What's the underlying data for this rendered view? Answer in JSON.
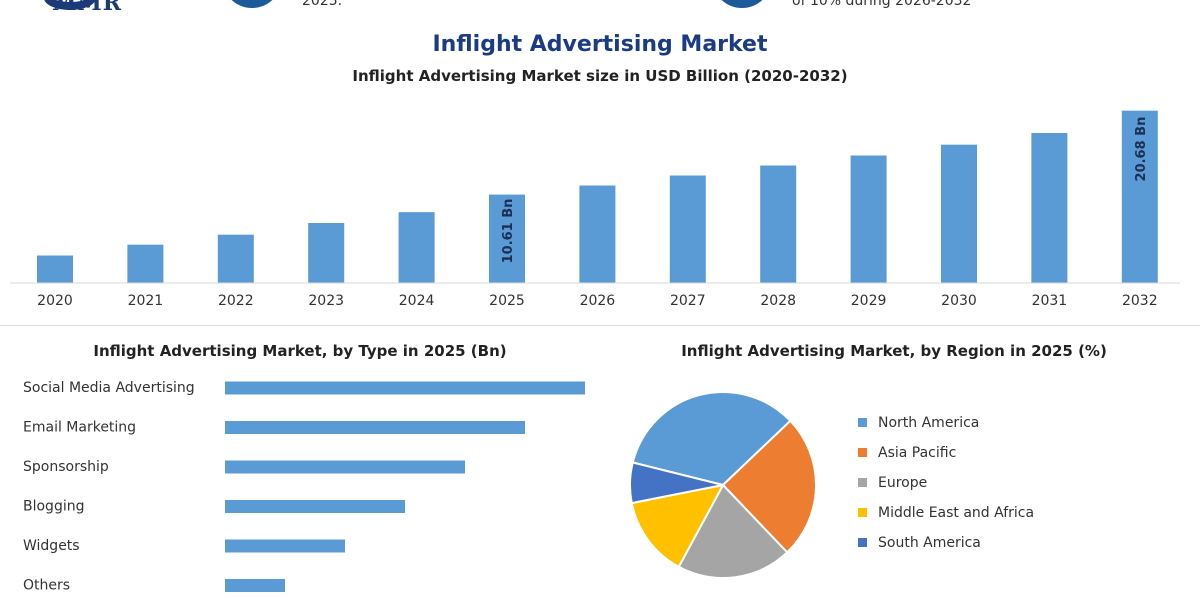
{
  "brand": {
    "logo_text": "MMR"
  },
  "strip": {
    "text_left": "2025.",
    "text_right": "of 10% during 2026-2032"
  },
  "header": {
    "title": "Inflight Advertising Market",
    "subtitle": "Inflight Advertising Market size in USD Billion (2020-2032)"
  },
  "colors": {
    "bar": "#5b9bd5",
    "north_america": "#5b9bd5",
    "asia_pacific": "#ed7d31",
    "europe": "#a5a5a5",
    "middle_east_africa": "#ffc000",
    "south_america": "#4472c4"
  },
  "chart_data": [
    {
      "type": "bar",
      "title": "Inflight Advertising Market size in USD Billion (2020-2032)",
      "categories": [
        "2020",
        "2021",
        "2022",
        "2023",
        "2024",
        "2025",
        "2026",
        "2027",
        "2028",
        "2029",
        "2030",
        "2031",
        "2032"
      ],
      "values": [
        3.3,
        4.6,
        5.8,
        7.2,
        8.5,
        10.61,
        11.7,
        12.9,
        14.1,
        15.3,
        16.6,
        18.0,
        20.68
      ],
      "data_labels": [
        {
          "category": "2025",
          "text": "10.61 Bn"
        },
        {
          "category": "2032",
          "text": "20.68 Bn"
        }
      ],
      "ylim": [
        0,
        21
      ]
    },
    {
      "type": "bar",
      "orientation": "horizontal",
      "title": "Inflight Advertising Market, by Type in 2025 (Bn)",
      "categories": [
        "Social Media Advertising",
        "Email Marketing",
        "Sponsorship",
        "Blogging",
        "Widgets",
        "Others"
      ],
      "values": [
        3.6,
        3.0,
        2.4,
        1.8,
        1.2,
        0.6
      ],
      "xlim": [
        0,
        3.6
      ]
    },
    {
      "type": "pie",
      "title": "Inflight Advertising Market, by Region in 2025 (%)",
      "categories": [
        "North America",
        "Asia Pacific",
        "Europe",
        "Middle East and Africa",
        "South America"
      ],
      "values": [
        34,
        25,
        20,
        14,
        7
      ],
      "legend_position": "right"
    }
  ]
}
